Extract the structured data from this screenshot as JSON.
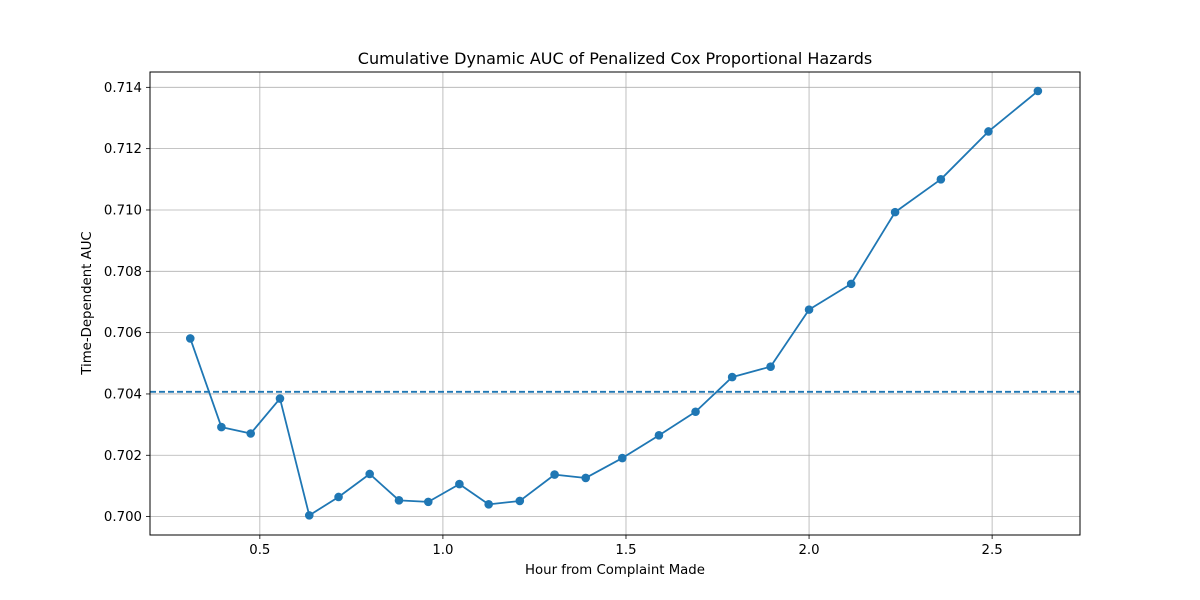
{
  "chart_data": {
    "type": "line",
    "title": "Cumulative Dynamic AUC of Penalized Cox Proportional Hazards",
    "xlabel": "Hour from Complaint Made",
    "ylabel": "Time-Dependent AUC",
    "xlim": [
      0.2,
      2.74
    ],
    "ylim": [
      0.6994,
      0.7145
    ],
    "xticks": [
      0.5,
      1.0,
      1.5,
      2.0,
      2.5
    ],
    "xtick_labels": [
      "0.5",
      "1.0",
      "1.5",
      "2.0",
      "2.5"
    ],
    "yticks": [
      0.7,
      0.702,
      0.704,
      0.706,
      0.708,
      0.71,
      0.712,
      0.714
    ],
    "ytick_labels": [
      "0.700",
      "0.702",
      "0.704",
      "0.706",
      "0.708",
      "0.710",
      "0.712",
      "0.714"
    ],
    "grid": true,
    "series": [
      {
        "color": "#1f77b4",
        "marker": "circle",
        "x": [
          0.31,
          0.395,
          0.475,
          0.555,
          0.635,
          0.715,
          0.8,
          0.88,
          0.96,
          1.045,
          1.125,
          1.21,
          1.305,
          1.39,
          1.49,
          1.59,
          1.69,
          1.79,
          1.895,
          2.0,
          2.115,
          2.235,
          2.36,
          2.49,
          2.625
        ],
        "y": [
          0.70581,
          0.70292,
          0.70271,
          0.70385,
          0.70004,
          0.70064,
          0.70139,
          0.70053,
          0.70048,
          0.70106,
          0.7004,
          0.70051,
          0.70137,
          0.70126,
          0.70191,
          0.70265,
          0.70342,
          0.70455,
          0.70489,
          0.70675,
          0.70759,
          0.70993,
          0.711,
          0.71256,
          0.71388
        ]
      }
    ],
    "reference_lines": [
      {
        "type": "horizontal",
        "y": 0.70407,
        "style": "dashed",
        "color": "#1f77b4"
      }
    ]
  }
}
